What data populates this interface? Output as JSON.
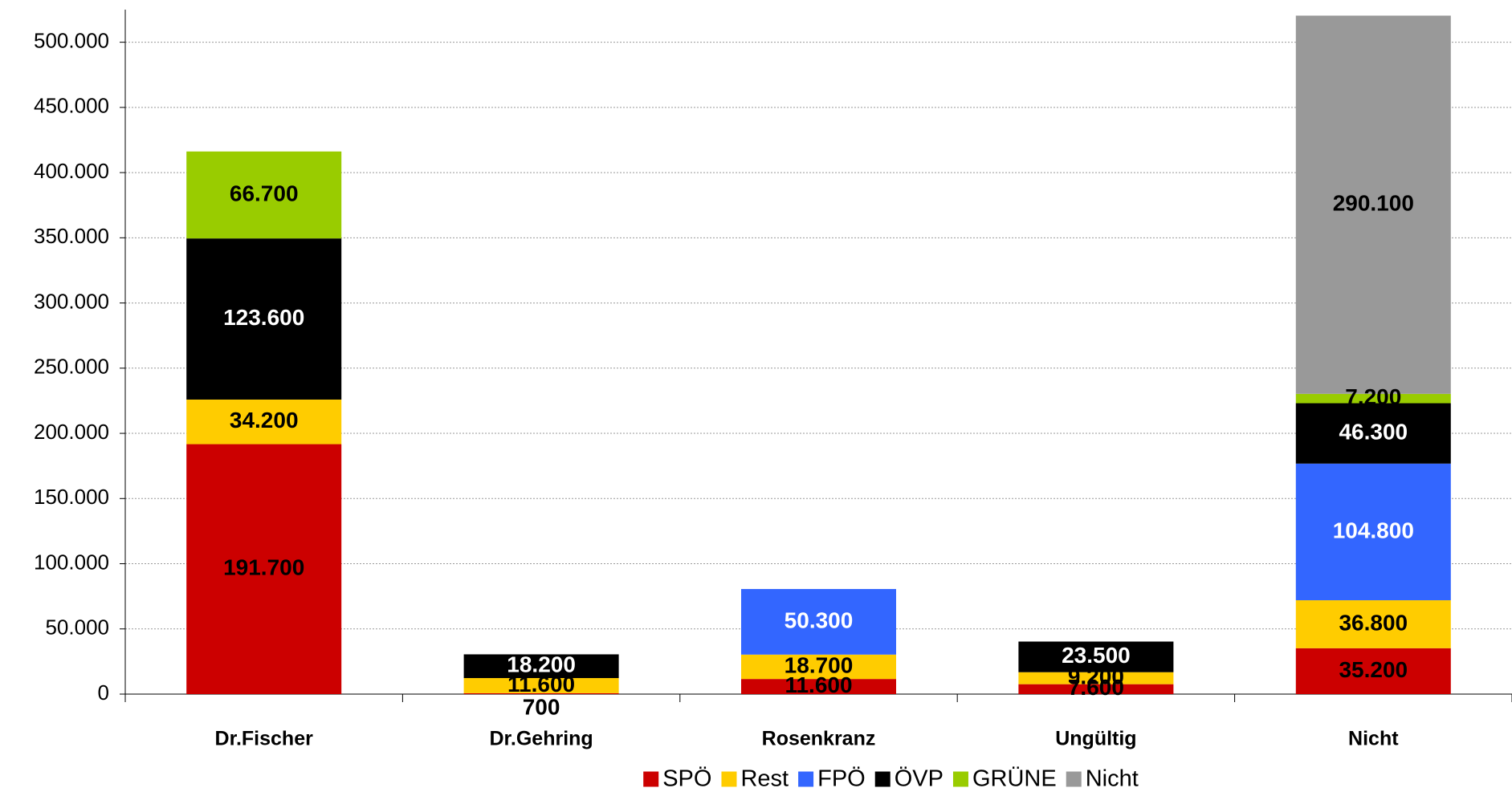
{
  "chart_data": {
    "type": "stacked_bar",
    "categories": [
      "Dr.Fischer",
      "Dr.Gehring",
      "Rosenkranz",
      "Ungültig",
      "Nicht"
    ],
    "series": [
      {
        "name": "SPÖ",
        "color": "#cc0000",
        "values": [
          191700,
          700,
          11600,
          7600,
          35200
        ],
        "value_labels": [
          "191.700",
          "700",
          "11.600",
          "7.600",
          "35.200"
        ]
      },
      {
        "name": "Rest",
        "color": "#ffcc00",
        "values": [
          34200,
          11600,
          18700,
          9200,
          36800
        ],
        "value_labels": [
          "34.200",
          "11.600",
          "18.700",
          "9.200",
          "36.800"
        ]
      },
      {
        "name": "FPÖ",
        "color": "#3366ff",
        "values": [
          null,
          null,
          50300,
          null,
          104800
        ],
        "value_labels": [
          null,
          null,
          "50.300",
          null,
          "104.800"
        ]
      },
      {
        "name": "ÖVP",
        "color": "#000000",
        "values": [
          123600,
          18200,
          null,
          23500,
          46300
        ],
        "value_labels": [
          "123.600",
          "18.200",
          null,
          "23.500",
          "46.300"
        ]
      },
      {
        "name": "GRÜNE",
        "color": "#99cc00",
        "values": [
          66700,
          null,
          null,
          null,
          7200
        ],
        "value_labels": [
          "66.700",
          null,
          null,
          null,
          "7.200"
        ]
      },
      {
        "name": "Nicht",
        "color": "#999999",
        "values": [
          null,
          null,
          null,
          null,
          290100
        ],
        "value_labels": [
          null,
          null,
          null,
          null,
          "290.100"
        ]
      }
    ],
    "ylim": [
      0,
      525000
    ],
    "yticks": [
      0,
      {
        "value": 50000,
        "label": "50.000"
      },
      {
        "value": 100000,
        "label": "100.000"
      },
      {
        "value": 150000,
        "label": "150.000"
      },
      {
        "value": 200000,
        "label": "200.000"
      },
      {
        "value": 250000,
        "label": "250.000"
      },
      {
        "value": 300000,
        "label": "300.000"
      },
      {
        "value": 350000,
        "label": "350.000"
      },
      {
        "value": 400000,
        "label": "400.000"
      },
      {
        "value": 450000,
        "label": "450.000"
      },
      {
        "value": 500000,
        "label": "500.000"
      }
    ],
    "grid": true
  }
}
